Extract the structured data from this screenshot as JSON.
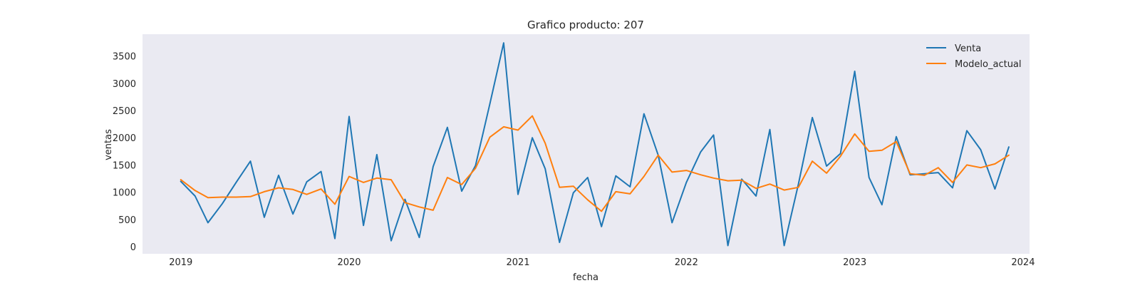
{
  "chart_data": {
    "type": "line",
    "title": "Grafico producto: 207",
    "xlabel": "fecha",
    "ylabel": "ventas",
    "xlim": [
      "2018-10-10",
      "2024-01-15"
    ],
    "ylim": [
      -130,
      3900
    ],
    "x_ticks": [
      "2019",
      "2020",
      "2021",
      "2022",
      "2023",
      "2024"
    ],
    "y_ticks": [
      0,
      500,
      1000,
      1500,
      2000,
      2500,
      3000,
      3500
    ],
    "grid": false,
    "legend_position": "top-right",
    "x": [
      "2019-01",
      "2019-02",
      "2019-03",
      "2019-04",
      "2019-05",
      "2019-06",
      "2019-07",
      "2019-08",
      "2019-09",
      "2019-10",
      "2019-11",
      "2019-12",
      "2020-01",
      "2020-02",
      "2020-03",
      "2020-04",
      "2020-05",
      "2020-06",
      "2020-07",
      "2020-08",
      "2020-09",
      "2020-10",
      "2020-11",
      "2020-12",
      "2021-01",
      "2021-02",
      "2021-03",
      "2021-04",
      "2021-05",
      "2021-06",
      "2021-07",
      "2021-08",
      "2021-09",
      "2021-10",
      "2021-11",
      "2021-12",
      "2022-01",
      "2022-02",
      "2022-03",
      "2022-04",
      "2022-05",
      "2022-06",
      "2022-07",
      "2022-08",
      "2022-09",
      "2022-10",
      "2022-11",
      "2022-12",
      "2023-01",
      "2023-02",
      "2023-03",
      "2023-04",
      "2023-05",
      "2023-06",
      "2023-07",
      "2023-08",
      "2023-09",
      "2023-10",
      "2023-11",
      "2023-12"
    ],
    "series": [
      {
        "name": "Venta",
        "color": "#1f77b4",
        "values": [
          1200,
          930,
          440,
          790,
          1180,
          1570,
          540,
          1310,
          600,
          1190,
          1380,
          150,
          2390,
          390,
          1690,
          110,
          870,
          170,
          1470,
          2190,
          1020,
          1490,
          2620,
          3740,
          960,
          2000,
          1430,
          80,
          990,
          1270,
          370,
          1300,
          1100,
          2440,
          1680,
          440,
          1180,
          1740,
          2050,
          20,
          1240,
          930,
          2150,
          20,
          1150,
          2370,
          1480,
          1710,
          3220,
          1270,
          770,
          2020,
          1320,
          1340,
          1360,
          1080,
          2130,
          1780,
          1060,
          1830
        ]
      },
      {
        "name": "Modelo_actual",
        "color": "#ff7f0e",
        "values": [
          1230,
          1030,
          900,
          910,
          910,
          920,
          1010,
          1080,
          1050,
          960,
          1060,
          780,
          1290,
          1180,
          1260,
          1230,
          810,
          730,
          670,
          1270,
          1140,
          1440,
          2010,
          2200,
          2140,
          2400,
          1900,
          1090,
          1110,
          860,
          650,
          1010,
          970,
          1290,
          1680,
          1370,
          1400,
          1320,
          1260,
          1210,
          1220,
          1070,
          1150,
          1040,
          1090,
          1570,
          1350,
          1660,
          2070,
          1750,
          1770,
          1930,
          1340,
          1310,
          1450,
          1180,
          1500,
          1450,
          1520,
          1680
        ]
      }
    ]
  }
}
